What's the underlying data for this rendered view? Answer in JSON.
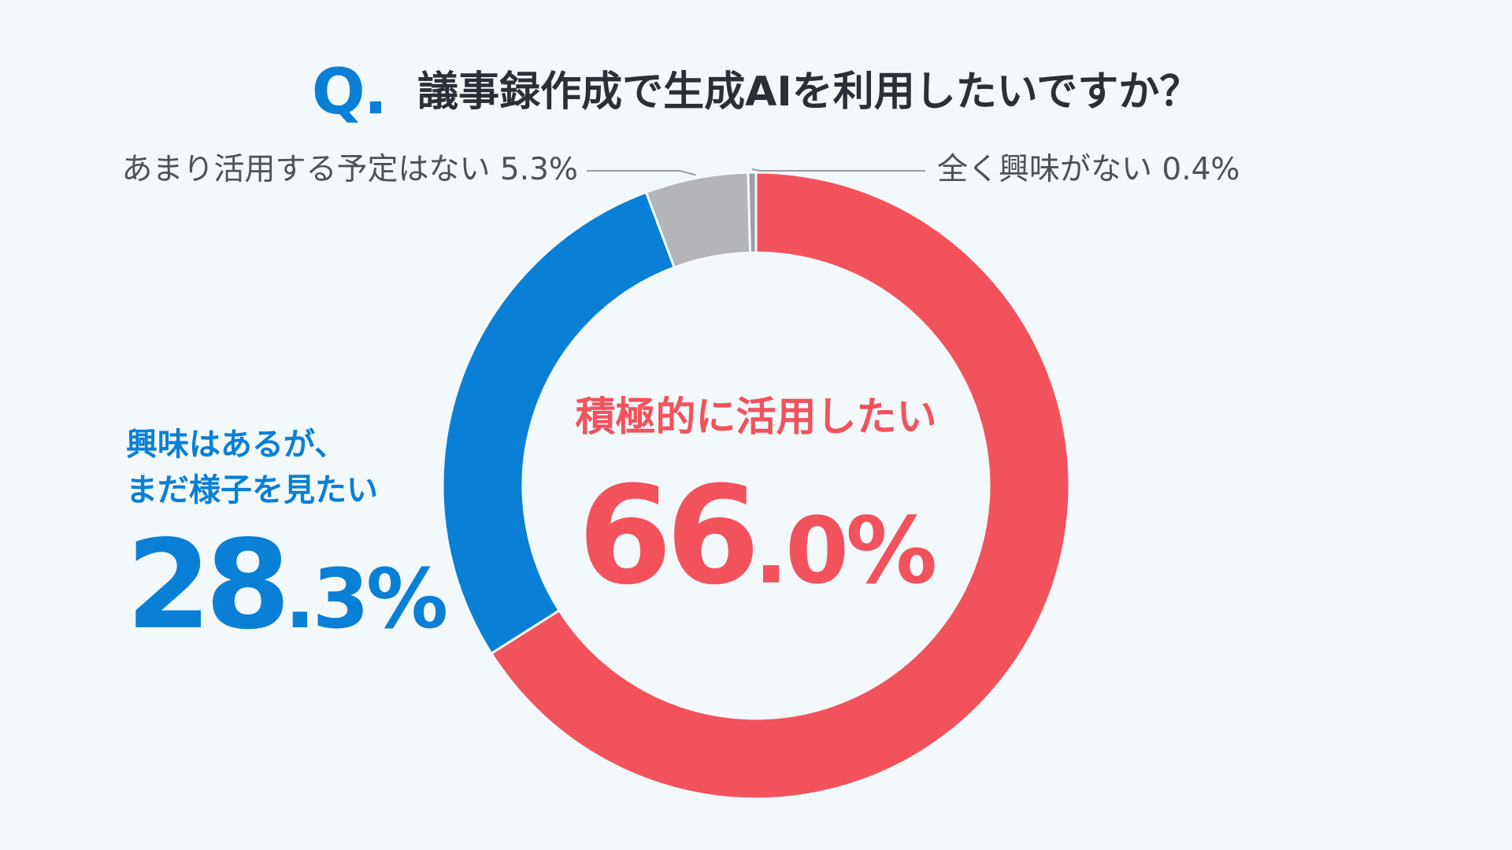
{
  "header": {
    "q_mark": "Q.",
    "question": "議事録作成で生成AIを利用したいですか？"
  },
  "labels": {
    "active": {
      "text": "積極的に活用したい",
      "int": "66",
      "dec": ".0%"
    },
    "wait": {
      "line1": "興味はあるが、",
      "line2": "まだ様子を見たい",
      "int": "28",
      "dec": ".3%"
    },
    "no_plan": "あまり活用する予定はない 5.3%",
    "no_interest": "全く興味がない 0.4%"
  },
  "colors": {
    "active": "#f2525c",
    "wait": "#0a7fd6",
    "no_plan": "#b3b5b8",
    "no_interest": "#9a9da1",
    "leader": "#9a9da1"
  },
  "chart_data": {
    "type": "pie",
    "donut": true,
    "start": "top",
    "direction": "clockwise",
    "title": "議事録作成で生成AIを利用したいですか？",
    "slices": [
      {
        "name": "積極的に活用したい",
        "value": 66.0,
        "color": "#f2525c"
      },
      {
        "name": "興味はあるが、まだ様子を見たい",
        "value": 28.3,
        "color": "#0a7fd6"
      },
      {
        "name": "あまり活用する予定はない",
        "value": 5.3,
        "color": "#b3b5b8"
      },
      {
        "name": "全く興味がない",
        "value": 0.4,
        "color": "#9a9da1"
      }
    ],
    "unit": "%"
  }
}
